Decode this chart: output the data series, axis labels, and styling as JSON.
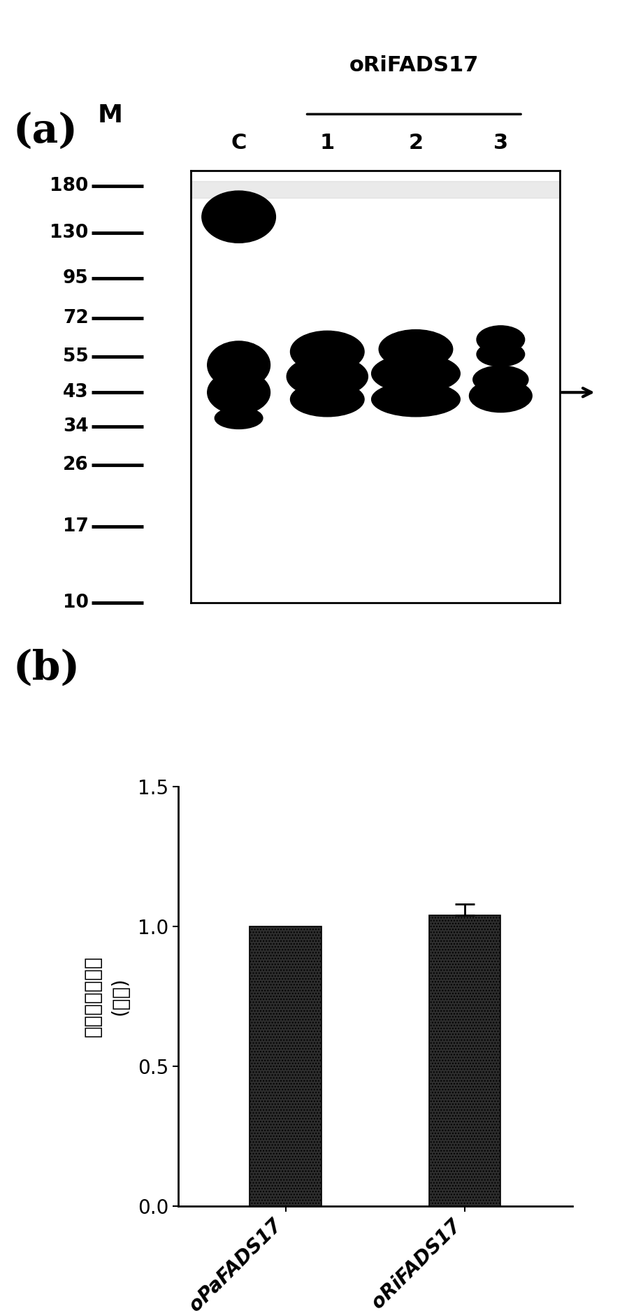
{
  "panel_a_label": "(a)",
  "panel_b_label": "(b)",
  "mw_marker_label": "M",
  "mw_markers": [
    180,
    130,
    95,
    72,
    55,
    43,
    34,
    26,
    17,
    10
  ],
  "gel_group_label": "oRiFADS17",
  "gel_lane_labels": [
    "C",
    "1",
    "2",
    "3"
  ],
  "arrow_at_kda": 43,
  "bar_categories": [
    "oPaFADS17",
    "oRiFADS17"
  ],
  "bar_values": [
    1.0,
    1.04
  ],
  "bar_errors": [
    0.0,
    0.04
  ],
  "bar_color": "#2d2d2d",
  "bar_hatch": "....",
  "ylabel_line1": "蛋白相对表达量",
  "ylabel_line2": "(倍数)",
  "ylim": [
    0,
    1.5
  ],
  "yticks": [
    0.0,
    0.5,
    1.0,
    1.5
  ],
  "bg_color": "#ffffff",
  "text_color": "#000000",
  "fig_width": 9.1,
  "fig_height": 18.75,
  "dpi": 100
}
